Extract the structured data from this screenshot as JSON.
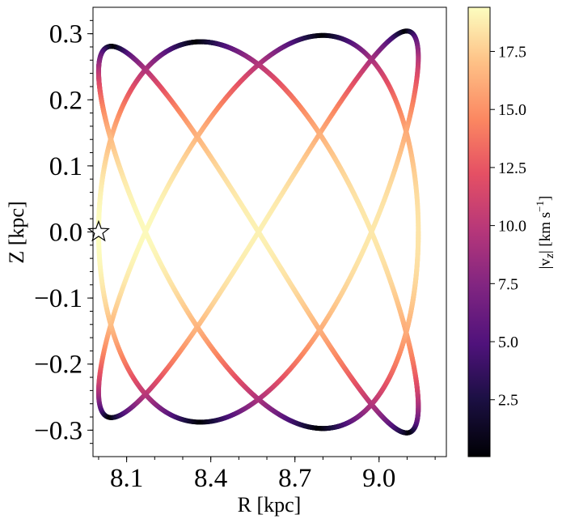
{
  "chart_data": {
    "type": "line",
    "title": "",
    "xlabel": "R [kpc]",
    "ylabel": "Z [kpc]",
    "xlim": [
      7.98,
      9.24
    ],
    "ylim": [
      -0.34,
      0.34
    ],
    "x_ticks": [
      8.1,
      8.4,
      8.7,
      9.0
    ],
    "x_tick_labels": [
      "8.1",
      "8.4",
      "8.7",
      "9.0"
    ],
    "y_ticks": [
      0.3,
      0.2,
      0.1,
      0.0,
      -0.1,
      -0.2,
      -0.3
    ],
    "y_tick_labels": [
      "0.3",
      "0.2",
      "0.1",
      "0.0",
      "−0.1",
      "−0.2",
      "−0.3"
    ],
    "orbit": {
      "r_min": 8.0,
      "r_max": 9.14,
      "z_amplitude": 0.28,
      "z_amplitude_at_r_max": 0.305,
      "radial_periods": 4.5,
      "vertical_periods": 6,
      "colored_by": "|v_z|"
    },
    "marker": {
      "name": "star",
      "x": 8.0,
      "y": 0.0
    },
    "colorbar": {
      "label": "|v_z| [km s⁻¹]",
      "label_main": "|v",
      "label_sub": "z",
      "label_unit": "| [km s",
      "label_sup": "−1",
      "label_close": "]",
      "colormap": "magma",
      "range": [
        0.05,
        19.4
      ],
      "ticks": [
        2.5,
        5.0,
        7.5,
        10.0,
        12.5,
        15.0,
        17.5
      ],
      "tick_labels": [
        "2.5",
        "5.0",
        "7.5",
        "10.0",
        "12.5",
        "15.0",
        "17.5"
      ]
    }
  }
}
